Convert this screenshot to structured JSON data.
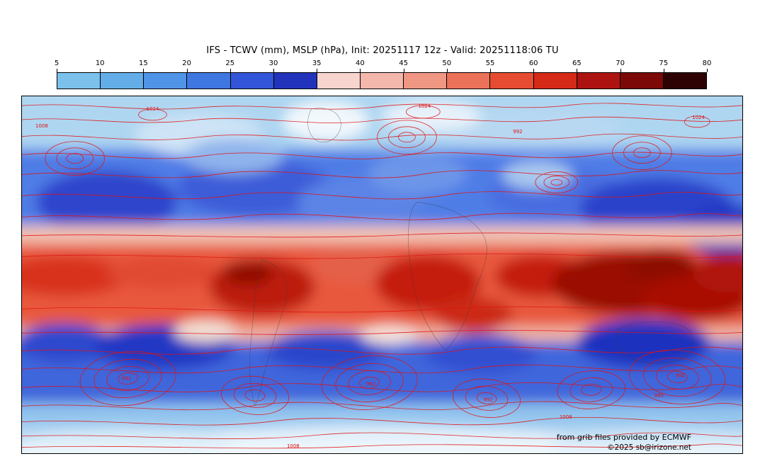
{
  "header": {
    "title": "IFS - TCWV (mm), MSLP (hPa), Init: 20251117 12z - Valid: 20251118:06 TU"
  },
  "colorbar": {
    "units": "mm",
    "ticks": [
      "5",
      "10",
      "15",
      "20",
      "25",
      "30",
      "35",
      "40",
      "45",
      "50",
      "55",
      "60",
      "65",
      "70",
      "75",
      "80"
    ],
    "segment_colors": [
      "#7bc1ec",
      "#63aee9",
      "#4f94e6",
      "#3e77e0",
      "#3355d9",
      "#2233bb",
      "#f7d4cd",
      "#f4b7ab",
      "#f09784",
      "#eb7158",
      "#e54c31",
      "#d52a18",
      "#ad1310",
      "#7d0808",
      "#2e0202"
    ]
  },
  "map": {
    "contour_color": "#e01212",
    "contour_labels": [
      {
        "text": "1008"
      },
      {
        "text": "1024"
      },
      {
        "text": "1024"
      },
      {
        "text": "992"
      },
      {
        "text": "1024"
      },
      {
        "text": "992"
      },
      {
        "text": "992"
      },
      {
        "text": "992"
      },
      {
        "text": "1008"
      },
      {
        "text": "960"
      },
      {
        "text": "992"
      },
      {
        "text": "1008"
      }
    ]
  },
  "footer": {
    "credit": "from grib files provided by ECMWF",
    "copyright": "©2025 sb@irizone.net"
  }
}
